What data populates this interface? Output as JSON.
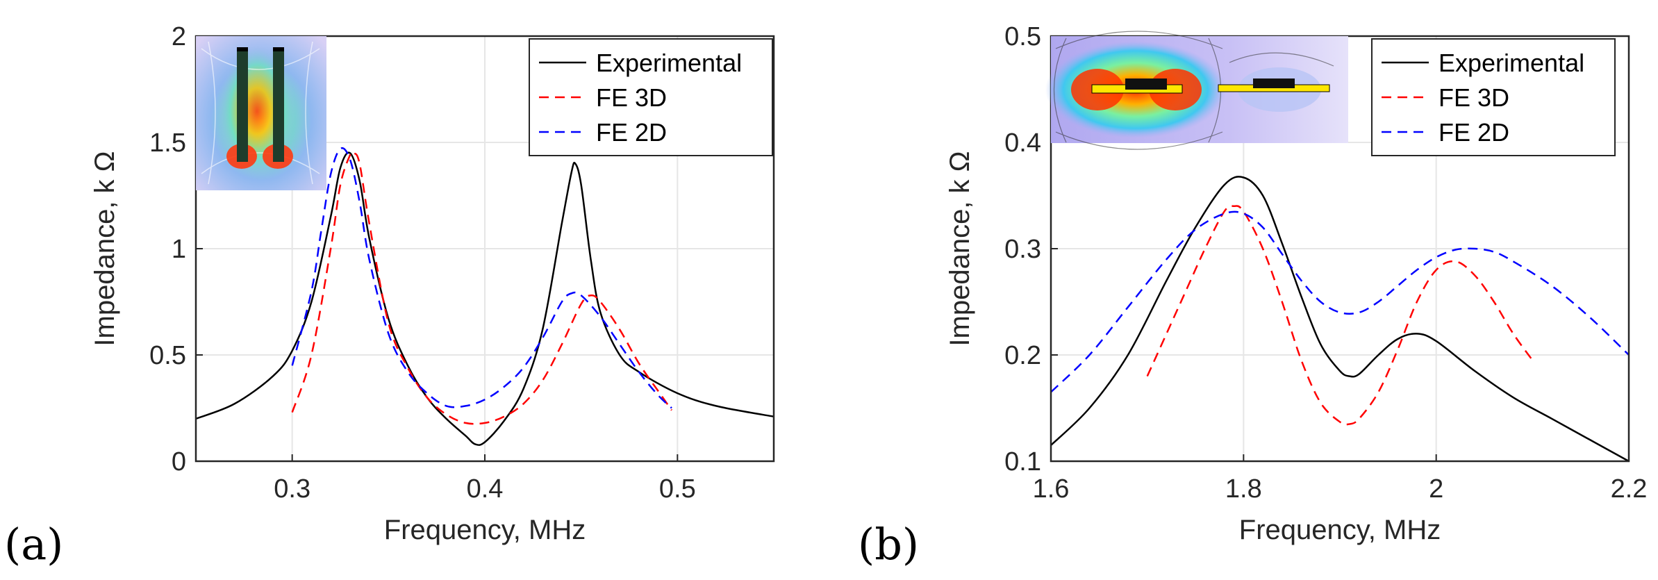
{
  "chart_data": [
    {
      "type": "line",
      "panel_label": "(a)",
      "xlabel": "Frequency, MHz",
      "ylabel": "Impedance, k Ω",
      "xlim": [
        0.25,
        0.55
      ],
      "ylim": [
        0,
        2
      ],
      "xticks": [
        0.3,
        0.4,
        0.5
      ],
      "xtick_labels": [
        "0.3",
        "0.4",
        "0.5"
      ],
      "yticks": [
        0,
        0.5,
        1,
        1.5,
        2
      ],
      "ytick_labels": [
        "0",
        "0.5",
        "1",
        "1.5",
        "2"
      ],
      "grid": true,
      "legend_position": "top-right",
      "inset": "vertical-electrodes-field-map",
      "series": [
        {
          "name": "Experimental",
          "color": "#000000",
          "dash": "solid",
          "x": [
            0.25,
            0.27,
            0.29,
            0.3,
            0.31,
            0.32,
            0.325,
            0.33,
            0.335,
            0.34,
            0.35,
            0.36,
            0.37,
            0.38,
            0.39,
            0.395,
            0.4,
            0.41,
            0.42,
            0.43,
            0.44,
            0.445,
            0.447,
            0.45,
            0.455,
            0.46,
            0.47,
            0.48,
            0.5,
            0.52,
            0.55
          ],
          "y": [
            0.2,
            0.27,
            0.4,
            0.52,
            0.75,
            1.15,
            1.38,
            1.45,
            1.32,
            1.05,
            0.67,
            0.45,
            0.3,
            0.2,
            0.12,
            0.08,
            0.09,
            0.19,
            0.34,
            0.62,
            1.12,
            1.36,
            1.4,
            1.3,
            0.95,
            0.7,
            0.5,
            0.42,
            0.32,
            0.26,
            0.21
          ]
        },
        {
          "name": "FE 3D",
          "color": "#ff0000",
          "dash": "dashed",
          "x": [
            0.3,
            0.31,
            0.32,
            0.325,
            0.33,
            0.332,
            0.335,
            0.34,
            0.35,
            0.36,
            0.37,
            0.38,
            0.39,
            0.4,
            0.41,
            0.42,
            0.43,
            0.44,
            0.45,
            0.455,
            0.46,
            0.47,
            0.48,
            0.49,
            0.497
          ],
          "y": [
            0.23,
            0.5,
            1.0,
            1.3,
            1.44,
            1.45,
            1.4,
            1.12,
            0.65,
            0.44,
            0.3,
            0.22,
            0.18,
            0.18,
            0.21,
            0.27,
            0.38,
            0.55,
            0.74,
            0.78,
            0.75,
            0.62,
            0.46,
            0.33,
            0.24
          ]
        },
        {
          "name": "FE 2D",
          "color": "#0000ff",
          "dash": "dashed",
          "x": [
            0.3,
            0.31,
            0.315,
            0.32,
            0.325,
            0.33,
            0.335,
            0.34,
            0.35,
            0.36,
            0.37,
            0.38,
            0.39,
            0.4,
            0.41,
            0.42,
            0.43,
            0.44,
            0.445,
            0.45,
            0.46,
            0.47,
            0.48,
            0.49,
            0.497
          ],
          "y": [
            0.45,
            0.8,
            1.08,
            1.35,
            1.47,
            1.42,
            1.22,
            0.95,
            0.6,
            0.42,
            0.32,
            0.26,
            0.26,
            0.29,
            0.35,
            0.44,
            0.58,
            0.75,
            0.79,
            0.78,
            0.68,
            0.55,
            0.42,
            0.31,
            0.25
          ]
        }
      ]
    },
    {
      "type": "line",
      "panel_label": "(b)",
      "xlabel": "Frequency, MHz",
      "ylabel": "Impedance, k Ω",
      "xlim": [
        1.6,
        2.2
      ],
      "ylim": [
        0.1,
        0.5
      ],
      "xticks": [
        1.6,
        1.8,
        2.0,
        2.2
      ],
      "xtick_labels": [
        "1.6",
        "1.8",
        "2",
        "2.2"
      ],
      "yticks": [
        0.1,
        0.2,
        0.3,
        0.4,
        0.5
      ],
      "ytick_labels": [
        "0.1",
        "0.2",
        "0.3",
        "0.4",
        "0.5"
      ],
      "grid": true,
      "legend_position": "top-right",
      "inset": "horizontal-electrodes-field-map",
      "series": [
        {
          "name": "Experimental",
          "color": "#000000",
          "dash": "solid",
          "x": [
            1.6,
            1.64,
            1.68,
            1.72,
            1.75,
            1.78,
            1.8,
            1.82,
            1.84,
            1.86,
            1.88,
            1.9,
            1.91,
            1.92,
            1.94,
            1.96,
            1.98,
            2.0,
            2.04,
            2.08,
            2.12,
            2.16,
            2.2
          ],
          "y": [
            0.115,
            0.15,
            0.2,
            0.27,
            0.32,
            0.36,
            0.367,
            0.35,
            0.305,
            0.255,
            0.21,
            0.185,
            0.18,
            0.182,
            0.2,
            0.215,
            0.22,
            0.213,
            0.185,
            0.16,
            0.14,
            0.12,
            0.1
          ]
        },
        {
          "name": "FE 3D",
          "color": "#ff0000",
          "dash": "dashed",
          "x": [
            1.7,
            1.72,
            1.74,
            1.76,
            1.78,
            1.79,
            1.8,
            1.82,
            1.84,
            1.86,
            1.88,
            1.9,
            1.91,
            1.92,
            1.94,
            1.96,
            1.98,
            2.0,
            2.02,
            2.04,
            2.06,
            2.08,
            2.1
          ],
          "y": [
            0.18,
            0.22,
            0.26,
            0.3,
            0.335,
            0.34,
            0.335,
            0.3,
            0.25,
            0.195,
            0.155,
            0.137,
            0.135,
            0.14,
            0.165,
            0.205,
            0.25,
            0.28,
            0.288,
            0.275,
            0.25,
            0.22,
            0.195
          ]
        },
        {
          "name": "FE 2D",
          "color": "#0000ff",
          "dash": "dashed",
          "x": [
            1.6,
            1.64,
            1.68,
            1.72,
            1.75,
            1.78,
            1.8,
            1.82,
            1.84,
            1.86,
            1.88,
            1.9,
            1.92,
            1.94,
            1.96,
            1.98,
            2.0,
            2.02,
            2.04,
            2.06,
            2.08,
            2.12,
            2.16,
            2.2
          ],
          "y": [
            0.165,
            0.2,
            0.245,
            0.29,
            0.318,
            0.333,
            0.333,
            0.32,
            0.295,
            0.27,
            0.25,
            0.24,
            0.24,
            0.25,
            0.265,
            0.28,
            0.292,
            0.299,
            0.3,
            0.297,
            0.288,
            0.265,
            0.235,
            0.2
          ]
        }
      ]
    }
  ]
}
